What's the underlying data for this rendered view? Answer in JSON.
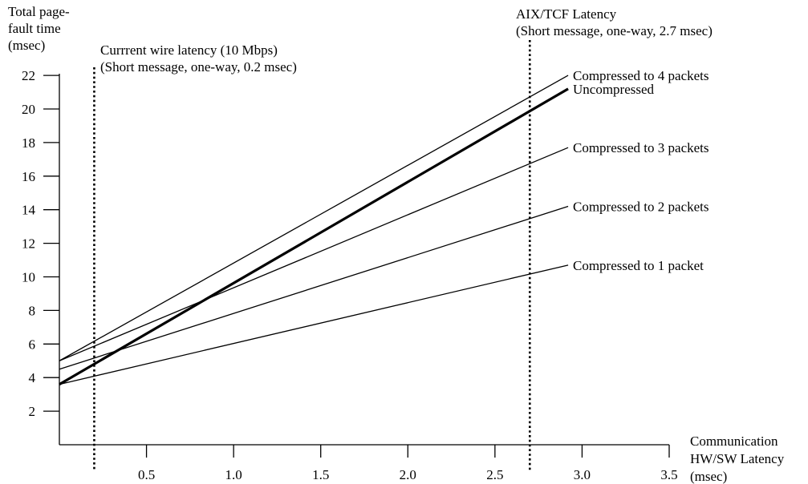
{
  "chart_data": {
    "type": "line",
    "ylabel": [
      "Total page-",
      "fault time",
      "(msec)"
    ],
    "xlabel": [
      "Communication",
      "HW/SW Latency",
      "(msec)"
    ],
    "xlim": [
      0,
      3.5
    ],
    "ylim": [
      0,
      22
    ],
    "xticks": [
      0.5,
      1.0,
      1.5,
      2.0,
      2.5,
      3.0,
      3.5
    ],
    "xtick_labels": [
      "0.5",
      "1.0",
      "1.5",
      "2.0",
      "2.5",
      "3.0",
      "3.5"
    ],
    "yticks": [
      2,
      4,
      6,
      8,
      10,
      12,
      14,
      16,
      18,
      20,
      22
    ],
    "ytick_labels": [
      "2",
      "4",
      "6",
      "8",
      "10",
      "12",
      "14",
      "16",
      "18",
      "20",
      "22"
    ],
    "grid": false,
    "series": [
      {
        "name": "Compressed to 4 packets",
        "x": [
          0,
          2.92
        ],
        "y": [
          5.0,
          22.0
        ],
        "bold": false
      },
      {
        "name": "Uncompressed",
        "x": [
          0,
          2.92
        ],
        "y": [
          3.6,
          21.2
        ],
        "bold": true
      },
      {
        "name": "Compressed to 3 packets",
        "x": [
          0,
          2.92
        ],
        "y": [
          5.0,
          17.7
        ],
        "bold": false
      },
      {
        "name": "Compressed to 2 packets",
        "x": [
          0,
          2.92
        ],
        "y": [
          4.5,
          14.2
        ],
        "bold": false
      },
      {
        "name": "Compressed to 1 packet",
        "x": [
          0,
          2.92
        ],
        "y": [
          3.6,
          10.7
        ],
        "bold": false
      }
    ],
    "annotations": [
      {
        "id": "wire",
        "x": 0.2,
        "lines": [
          "Currrent wire latency (10 Mbps)",
          "(Short message, one-way, 0.2 msec)"
        ]
      },
      {
        "id": "aix",
        "x": 2.7,
        "lines": [
          "AIX/TCF Latency",
          "(Short message, one-way, 2.7 msec)"
        ]
      }
    ]
  }
}
